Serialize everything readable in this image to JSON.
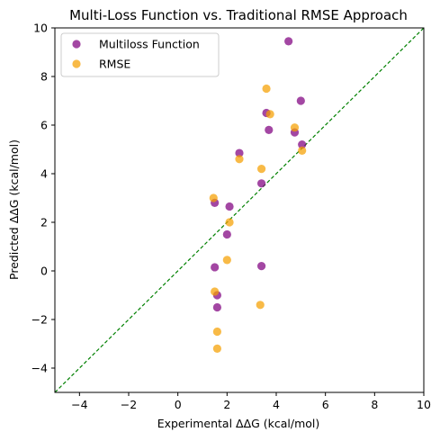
{
  "chart_data": {
    "type": "scatter",
    "title": "Multi-Loss Function vs. Traditional RMSE Approach",
    "xlabel": "Experimental ΔΔG (kcal/mol)",
    "ylabel": "Predicted ΔΔG (kcal/mol)",
    "xlim": [
      -5,
      10
    ],
    "ylim": [
      -5,
      10
    ],
    "xticks": [
      -4,
      -2,
      0,
      2,
      4,
      6,
      8,
      10
    ],
    "yticks": [
      -4,
      -2,
      0,
      2,
      4,
      6,
      8,
      10
    ],
    "grid": false,
    "legend_position": "top-left",
    "reference_line": {
      "style": "dashed",
      "color": "#008000",
      "from": [
        -5,
        -5
      ],
      "to": [
        10,
        10
      ]
    },
    "series": [
      {
        "name": "Multiloss Function",
        "color": "#800080",
        "points": [
          [
            4.5,
            9.45
          ],
          [
            5.0,
            7.0
          ],
          [
            3.6,
            6.5
          ],
          [
            3.7,
            5.8
          ],
          [
            4.75,
            5.7
          ],
          [
            5.05,
            5.2
          ],
          [
            2.5,
            4.85
          ],
          [
            3.4,
            3.6
          ],
          [
            1.5,
            2.8
          ],
          [
            2.1,
            2.65
          ],
          [
            2.0,
            1.5
          ],
          [
            1.5,
            0.15
          ],
          [
            3.4,
            0.2
          ],
          [
            1.6,
            -1.0
          ],
          [
            1.6,
            -1.5
          ]
        ]
      },
      {
        "name": "RMSE",
        "color": "#F5A000",
        "points": [
          [
            3.6,
            7.5
          ],
          [
            3.75,
            6.45
          ],
          [
            4.75,
            5.9
          ],
          [
            5.05,
            4.95
          ],
          [
            2.5,
            4.6
          ],
          [
            3.4,
            4.2
          ],
          [
            1.45,
            3.0
          ],
          [
            2.1,
            2.0
          ],
          [
            2.0,
            0.45
          ],
          [
            1.5,
            -0.85
          ],
          [
            3.35,
            -1.4
          ],
          [
            1.6,
            -2.5
          ],
          [
            1.6,
            -3.2
          ]
        ]
      }
    ]
  }
}
